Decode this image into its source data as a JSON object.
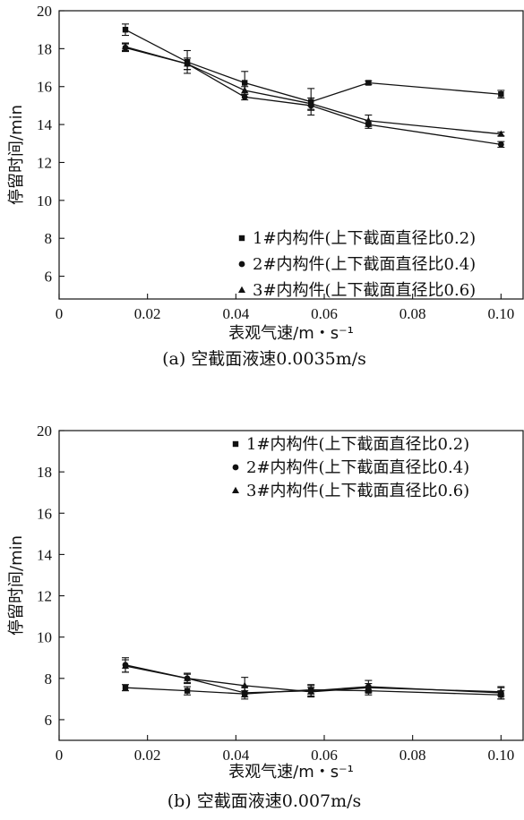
{
  "chart_data": [
    {
      "type": "line",
      "caption": "(a) 空截面液速0.0035m/s",
      "xlabel": "表观气速/m・s⁻¹",
      "ylabel": "停留时间/min",
      "xlim": [
        0,
        0.105
      ],
      "ylim": [
        4.8,
        20
      ],
      "xticks": [
        "0",
        "0.02",
        "0.04",
        "0.06",
        "0.08",
        "0.10"
      ],
      "yticks": [
        "6",
        "8",
        "10",
        "12",
        "14",
        "16",
        "18",
        "20"
      ],
      "legend_position": "bottom-right",
      "x": [
        0.015,
        0.029,
        0.042,
        0.057,
        0.07,
        0.1
      ],
      "series": [
        {
          "name": "1#内构件(上下截面直径比0.2)",
          "marker": "square",
          "values": [
            19.0,
            17.3,
            16.2,
            15.2,
            16.2,
            15.6
          ],
          "errors": [
            0.3,
            0.6,
            0.6,
            0.7,
            0.1,
            0.2
          ]
        },
        {
          "name": "2#内构件(上下截面直径比0.4)",
          "marker": "circle",
          "values": [
            18.05,
            17.2,
            15.45,
            15.0,
            14.0,
            12.95
          ],
          "errors": [
            0.2,
            0.3,
            0.15,
            0.25,
            0.2,
            0.15
          ]
        },
        {
          "name": "3#内构件(上下截面直径比0.6)",
          "marker": "triangle",
          "values": [
            18.1,
            17.2,
            15.8,
            15.1,
            14.2,
            13.5
          ],
          "errors": [
            0.2,
            0.3,
            0.2,
            0.3,
            0.3,
            0.1
          ]
        }
      ]
    },
    {
      "type": "line",
      "caption": "(b) 空截面液速0.007m/s",
      "xlabel": "表观气速/m・s⁻¹",
      "ylabel": "停留时间/min",
      "xlim": [
        0,
        0.105
      ],
      "ylim": [
        5,
        20
      ],
      "xticks": [
        "0",
        "0.02",
        "0.04",
        "0.06",
        "0.08",
        "0.10"
      ],
      "yticks": [
        "6",
        "8",
        "10",
        "12",
        "14",
        "16",
        "18",
        "20"
      ],
      "legend_position": "top-right",
      "x": [
        0.015,
        0.029,
        0.042,
        0.057,
        0.07,
        0.1
      ],
      "series": [
        {
          "name": "1#内构件(上下截面直径比0.2)",
          "marker": "square",
          "values": [
            7.55,
            7.4,
            7.25,
            7.45,
            7.4,
            7.2
          ],
          "errors": [
            0.15,
            0.2,
            0.15,
            0.2,
            0.2,
            0.2
          ]
        },
        {
          "name": "2#内构件(上下截面直径比0.4)",
          "marker": "circle",
          "values": [
            8.65,
            8.0,
            7.3,
            7.4,
            7.6,
            7.3
          ],
          "errors": [
            0.35,
            0.2,
            0.3,
            0.3,
            0.3,
            0.3
          ]
        },
        {
          "name": "3#内构件(上下截面直径比0.6)",
          "marker": "triangle",
          "values": [
            8.6,
            8.0,
            7.65,
            7.35,
            7.55,
            7.35
          ],
          "errors": [
            0.3,
            0.25,
            0.4,
            0.2,
            0.2,
            0.2
          ]
        }
      ]
    }
  ]
}
